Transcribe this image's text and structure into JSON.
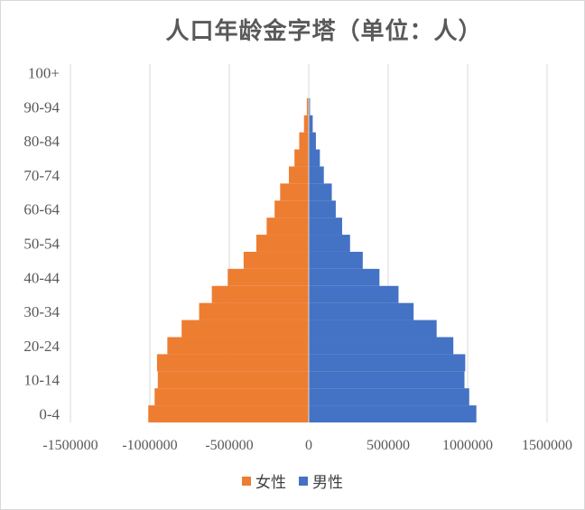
{
  "chart_data": {
    "type": "bar",
    "orientation": "horizontal-population-pyramid",
    "title": "人口年龄金字塔（单位：人）",
    "categories": [
      "0-4",
      "5-9",
      "10-14",
      "15-19",
      "20-24",
      "25-29",
      "30-34",
      "35-39",
      "40-44",
      "45-49",
      "50-54",
      "55-59",
      "60-64",
      "65-69",
      "70-74",
      "75-79",
      "80-84",
      "85-89",
      "90-94",
      "95-99",
      "100+"
    ],
    "y_tick_labels": [
      "0-4",
      "10-14",
      "20-24",
      "30-34",
      "40-44",
      "50-54",
      "60-64",
      "70-74",
      "80-84",
      "90-94",
      "100+"
    ],
    "x_ticks": [
      -1500000,
      -1000000,
      -500000,
      0,
      500000,
      1000000,
      1500000
    ],
    "x_tick_labels": [
      "-1500000",
      "-1000000",
      "-500000",
      "0",
      "500000",
      "1000000",
      "1500000"
    ],
    "xlim": [
      -1500000,
      1500000
    ],
    "grid": true,
    "legend_position": "bottom",
    "series": [
      {
        "name": "女性",
        "color": "#ED7D31",
        "values": [
          -1010000,
          -970000,
          -950000,
          -955000,
          -890000,
          -800000,
          -690000,
          -610000,
          -510000,
          -410000,
          -330000,
          -265000,
          -215000,
          -180000,
          -125000,
          -90000,
          -60000,
          -30000,
          -12000,
          0,
          0
        ]
      },
      {
        "name": "男性",
        "color": "#4472C4",
        "values": [
          1055000,
          1010000,
          980000,
          985000,
          910000,
          805000,
          660000,
          565000,
          445000,
          340000,
          260000,
          210000,
          170000,
          145000,
          95000,
          70000,
          45000,
          25000,
          8000,
          0,
          0
        ]
      }
    ]
  },
  "legend": {
    "female_label": "女性",
    "male_label": "男性",
    "female_color": "#ED7D31",
    "male_color": "#4472C4"
  }
}
